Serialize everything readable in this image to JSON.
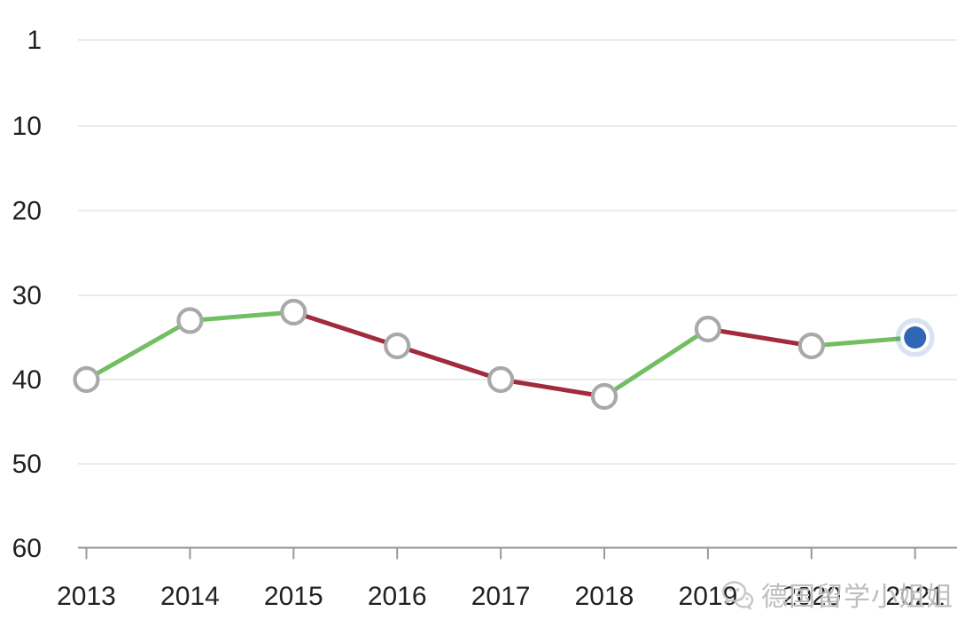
{
  "chart_data": {
    "type": "line",
    "title": "",
    "x_categories": [
      "2013",
      "2014",
      "2015",
      "2016",
      "2017",
      "2018",
      "2019",
      "2020",
      "2021"
    ],
    "values": [
      40,
      33,
      32,
      36,
      40,
      42,
      34,
      36,
      35
    ],
    "y_ticks": [
      "1",
      "10",
      "20",
      "30",
      "40",
      "50",
      "60"
    ],
    "y_tick_values": [
      1,
      10,
      20,
      30,
      40,
      50,
      60
    ],
    "y_axis_inverted": true,
    "ylim_note": "ranking axis, 1 (best) at top, 60 at bottom, ticks equally spaced",
    "grid": true,
    "legend_position": "none",
    "segment_rule": "green segment when rank number decreases (improvement), dark red when it increases (decline)",
    "segments": [
      "green",
      "green",
      "red",
      "red",
      "red",
      "green",
      "red",
      "green"
    ],
    "current_point": {
      "x": "2021",
      "value": 35,
      "style": "solid blue dot with white ring and light blue halo"
    },
    "colors": {
      "improve_segment": "#72BF63",
      "decline_segment": "#A12A3C",
      "marker_fill": "#FFFFFF",
      "marker_stroke": "#A9A9A9",
      "current_point_fill": "#2F66B5",
      "current_point_ring": "#FFFFFF",
      "current_point_halo": "rgba(47,102,181,0.18)",
      "gridline": "#EBEBEB",
      "axis_line": "#9A9A9A",
      "tick_label": "#212121"
    }
  },
  "watermark": {
    "icon": "wechat-icon",
    "text": "德国留学小姐姐",
    "color": "#B9B9B9"
  }
}
